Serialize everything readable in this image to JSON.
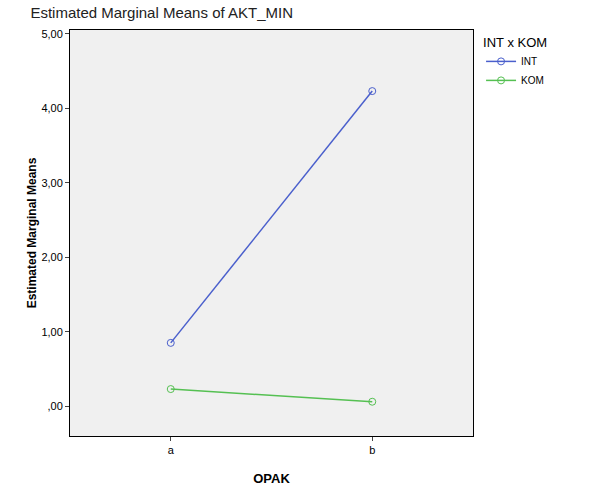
{
  "chart_data": {
    "type": "line",
    "title": "Estimated Marginal Means of AKT_MIN",
    "x_label": "OPAK",
    "y_label": "Estimated Marginal Means",
    "legend_title": "INT x KOM",
    "categories": [
      "a",
      "b"
    ],
    "series": [
      {
        "name": "INT",
        "color": "#4a5fcc",
        "values": [
          0.85,
          4.23
        ]
      },
      {
        "name": "KOM",
        "color": "#55c052",
        "values": [
          0.23,
          0.06
        ]
      }
    ],
    "ylim": [
      -0.4,
      5.05
    ],
    "yticks": [
      {
        "value": 0,
        "label": ",00"
      },
      {
        "value": 1,
        "label": "1,00"
      },
      {
        "value": 2,
        "label": "2,00"
      },
      {
        "value": 3,
        "label": "3,00"
      },
      {
        "value": 4,
        "label": "4,00"
      },
      {
        "value": 5,
        "label": "5,00"
      }
    ],
    "grid": false,
    "legend": "right",
    "marker": "circle-open",
    "line_style": "solid"
  }
}
